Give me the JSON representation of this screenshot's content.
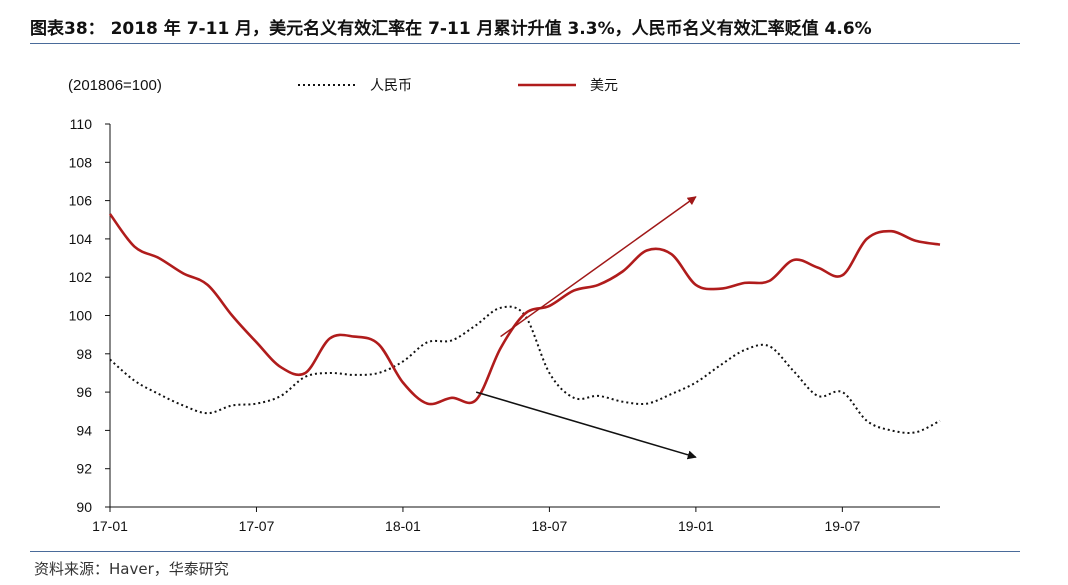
{
  "title": "图表38： 2018 年 7-11 月，美元名义有效汇率在 7-11 月累计升值 3.3%，人民币名义有效汇率贬值 4.6%",
  "source": "资料来源：Haver，华泰研究",
  "chart_data": {
    "type": "line",
    "unit_label": "(201806=100)",
    "ylim": [
      90,
      110
    ],
    "yticks": [
      90,
      92,
      94,
      96,
      98,
      100,
      102,
      104,
      106,
      108,
      110
    ],
    "x_range": [
      "2017-01",
      "2019-11"
    ],
    "xtick_labels": [
      "17-01",
      "17-07",
      "18-01",
      "18-07",
      "19-01",
      "19-07"
    ],
    "grid": false,
    "legend_position": "top",
    "colors": {
      "rmb": "#111111",
      "usd": "#b01c1c",
      "up_arrow": "#a01818",
      "down_arrow": "#111111"
    },
    "series": [
      {
        "name": "人民币",
        "style": "dotted",
        "x": [
          "2017-01",
          "2017-02",
          "2017-03",
          "2017-04",
          "2017-05",
          "2017-06",
          "2017-07",
          "2017-08",
          "2017-09",
          "2017-10",
          "2017-11",
          "2017-12",
          "2018-01",
          "2018-02",
          "2018-03",
          "2018-04",
          "2018-05",
          "2018-06",
          "2018-07",
          "2018-08",
          "2018-09",
          "2018-10",
          "2018-11",
          "2018-12",
          "2019-01",
          "2019-02",
          "2019-03",
          "2019-04",
          "2019-05",
          "2019-06",
          "2019-07",
          "2019-08",
          "2019-09",
          "2019-10",
          "2019-11"
        ],
        "values": [
          97.7,
          96.6,
          95.9,
          95.3,
          94.9,
          95.3,
          95.4,
          95.8,
          96.8,
          97.0,
          96.9,
          97.0,
          97.6,
          98.6,
          98.7,
          99.5,
          100.4,
          100.0,
          97.0,
          95.7,
          95.8,
          95.5,
          95.4,
          95.9,
          96.5,
          97.4,
          98.2,
          98.4,
          97.1,
          95.8,
          96.0,
          94.5,
          94.0,
          93.9,
          94.5
        ]
      },
      {
        "name": "美元",
        "style": "solid",
        "x": [
          "2017-01",
          "2017-02",
          "2017-03",
          "2017-04",
          "2017-05",
          "2017-06",
          "2017-07",
          "2017-08",
          "2017-09",
          "2017-10",
          "2017-11",
          "2017-12",
          "2018-01",
          "2018-02",
          "2018-03",
          "2018-04",
          "2018-05",
          "2018-06",
          "2018-07",
          "2018-08",
          "2018-09",
          "2018-10",
          "2018-11",
          "2018-12",
          "2019-01",
          "2019-02",
          "2019-03",
          "2019-04",
          "2019-05",
          "2019-06",
          "2019-07",
          "2019-08",
          "2019-09",
          "2019-10",
          "2019-11"
        ],
        "values": [
          105.3,
          103.6,
          103.0,
          102.2,
          101.6,
          100.0,
          98.6,
          97.3,
          97.0,
          98.8,
          98.9,
          98.5,
          96.5,
          95.4,
          95.7,
          95.6,
          98.3,
          100.1,
          100.5,
          101.3,
          101.6,
          102.3,
          103.4,
          103.2,
          101.6,
          101.4,
          101.7,
          101.8,
          102.9,
          102.5,
          102.1,
          104.0,
          104.4,
          103.9,
          103.7
        ]
      }
    ],
    "annotations": [
      {
        "type": "arrow",
        "direction": "up",
        "from": [
          "2018-05",
          98.9
        ],
        "to": [
          "2019-01",
          106.2
        ]
      },
      {
        "type": "arrow",
        "direction": "down",
        "from": [
          "2018-04",
          96.0
        ],
        "to": [
          "2019-01",
          92.6
        ]
      }
    ]
  }
}
